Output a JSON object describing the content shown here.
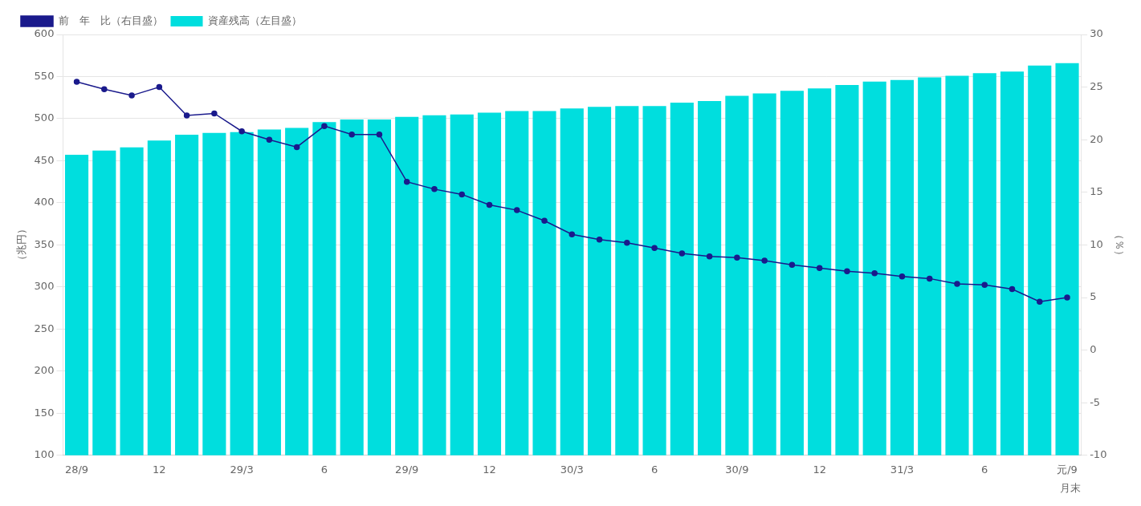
{
  "chart_data": {
    "type": "bar",
    "xlabel": "月末",
    "ylabel": "（兆円）",
    "y2label": "（％）",
    "categories": [
      "28/9",
      null,
      null,
      "12",
      null,
      null,
      "29/3",
      null,
      null,
      "6",
      null,
      null,
      "29/9",
      null,
      null,
      "12",
      null,
      null,
      "30/3",
      null,
      null,
      "6",
      null,
      null,
      "30/9",
      null,
      null,
      "12",
      null,
      null,
      "31/3",
      null,
      null,
      "6",
      null,
      null,
      "元/9"
    ],
    "series": [
      {
        "name": "資産残高（左目盛）",
        "type": "bar",
        "color": "#00DEDE",
        "values": [
          457,
          462,
          466,
          474,
          481,
          483,
          484,
          487,
          489,
          496,
          499,
          499,
          502,
          504,
          505,
          507,
          509,
          509,
          512,
          514,
          515,
          515,
          519,
          521,
          527,
          530,
          533,
          536,
          540,
          544,
          546,
          549,
          551,
          554,
          556,
          563,
          566
        ]
      },
      {
        "name": "前　年　比（右目盛）",
        "type": "line",
        "axis": "y2",
        "color": "#1a1a8c",
        "marker": "circle",
        "line_style": "solid",
        "values": [
          25.5,
          24.8,
          24.2,
          25.0,
          22.3,
          22.5,
          20.8,
          20.0,
          19.3,
          21.3,
          20.5,
          20.5,
          16.0,
          15.3,
          14.8,
          13.8,
          13.3,
          12.3,
          11.0,
          10.5,
          10.2,
          9.7,
          9.2,
          8.9,
          8.8,
          8.5,
          8.1,
          7.8,
          7.5,
          7.3,
          7.0,
          6.8,
          6.3,
          6.2,
          5.8,
          4.6,
          5.0
        ]
      }
    ],
    "ylim": [
      100,
      600
    ],
    "yticks": [
      100,
      150,
      200,
      250,
      300,
      350,
      400,
      450,
      500,
      550,
      600
    ],
    "y2lim": [
      -10,
      30
    ],
    "y2ticks": [
      -10,
      -5,
      0,
      5,
      10,
      15,
      20,
      25,
      30
    ],
    "grid": true,
    "legend": "upper left"
  }
}
